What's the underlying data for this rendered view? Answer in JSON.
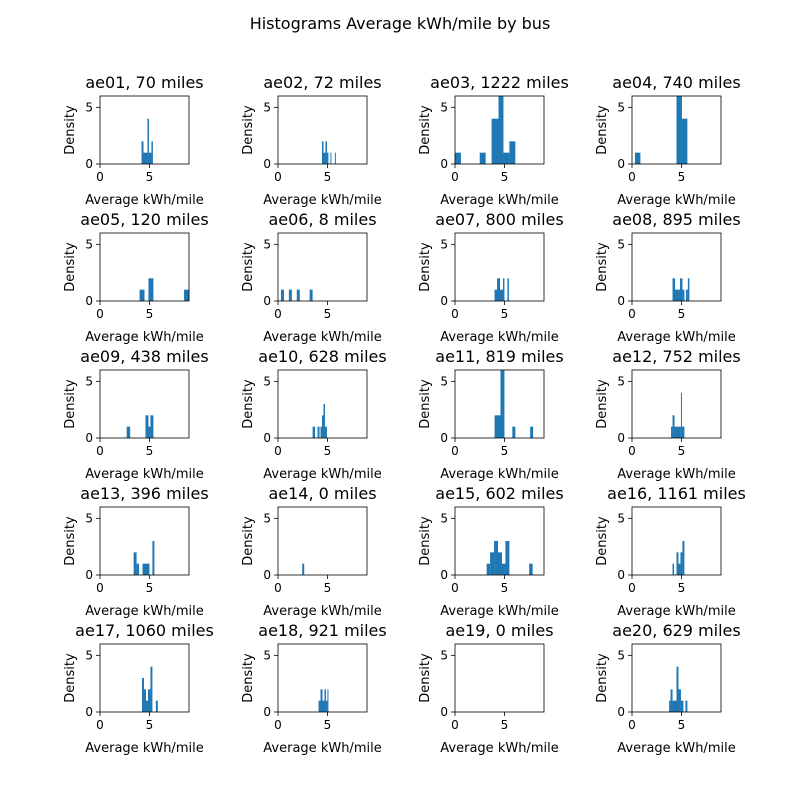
{
  "figure": {
    "suptitle": "Histograms Average kWh/mile by bus"
  },
  "colors": {
    "bar": "#1f77b4",
    "axis": "#000000",
    "background": "#ffffff"
  },
  "chart_data": [
    {
      "type": "bar",
      "title": "ae01, 70 miles",
      "xlabel": "Average kWh/mile",
      "ylabel": "Density",
      "xlim": [
        0,
        9
      ],
      "ylim": [
        0,
        6
      ],
      "xticks": [
        0,
        5
      ],
      "yticks": [
        0,
        5
      ],
      "grid": false,
      "bins": [
        {
          "x0": 4.2,
          "x1": 4.4,
          "h": 2
        },
        {
          "x0": 4.4,
          "x1": 4.8,
          "h": 1
        },
        {
          "x0": 4.8,
          "x1": 4.95,
          "h": 4
        },
        {
          "x0": 4.95,
          "x1": 5.2,
          "h": 1
        },
        {
          "x0": 5.2,
          "x1": 5.35,
          "h": 2
        }
      ]
    },
    {
      "type": "bar",
      "title": "ae02, 72 miles",
      "xlabel": "Average kWh/mile",
      "ylabel": "Density",
      "xlim": [
        0,
        9
      ],
      "ylim": [
        0,
        6
      ],
      "xticks": [
        0,
        5
      ],
      "yticks": [
        0,
        5
      ],
      "grid": false,
      "bins": [
        {
          "x0": 4.45,
          "x1": 4.6,
          "h": 2
        },
        {
          "x0": 4.6,
          "x1": 4.8,
          "h": 1
        },
        {
          "x0": 4.8,
          "x1": 4.95,
          "h": 2
        },
        {
          "x0": 4.95,
          "x1": 5.1,
          "h": 1
        },
        {
          "x0": 5.3,
          "x1": 5.4,
          "h": 1
        },
        {
          "x0": 5.75,
          "x1": 5.85,
          "h": 1
        }
      ]
    },
    {
      "type": "bar",
      "title": "ae03, 1222 miles",
      "xlabel": "Average kWh/mile",
      "ylabel": "Density",
      "xlim": [
        0,
        9
      ],
      "ylim": [
        0,
        6
      ],
      "xticks": [
        0,
        5
      ],
      "yticks": [
        0,
        5
      ],
      "grid": false,
      "bins": [
        {
          "x0": 0,
          "x1": 0.6,
          "h": 1
        },
        {
          "x0": 2.5,
          "x1": 3.1,
          "h": 1
        },
        {
          "x0": 3.7,
          "x1": 4.4,
          "h": 4
        },
        {
          "x0": 4.4,
          "x1": 4.9,
          "h": 6
        },
        {
          "x0": 4.9,
          "x1": 5.5,
          "h": 1
        },
        {
          "x0": 5.5,
          "x1": 6.1,
          "h": 2
        }
      ]
    },
    {
      "type": "bar",
      "title": "ae04, 740 miles",
      "xlabel": "Average kWh/mile",
      "ylabel": "Density",
      "xlim": [
        0,
        9
      ],
      "ylim": [
        0,
        6
      ],
      "xticks": [
        0,
        5
      ],
      "yticks": [
        0,
        5
      ],
      "grid": false,
      "bins": [
        {
          "x0": 0.3,
          "x1": 0.85,
          "h": 1
        },
        {
          "x0": 4.5,
          "x1": 5.05,
          "h": 6
        },
        {
          "x0": 5.05,
          "x1": 5.6,
          "h": 4
        }
      ]
    },
    {
      "type": "bar",
      "title": "ae05, 120 miles",
      "xlabel": "Average kWh/mile",
      "ylabel": "Density",
      "xlim": [
        0,
        9
      ],
      "ylim": [
        0,
        6
      ],
      "xticks": [
        0,
        5
      ],
      "yticks": [
        0,
        5
      ],
      "grid": false,
      "bins": [
        {
          "x0": 4.0,
          "x1": 4.5,
          "h": 1
        },
        {
          "x0": 4.9,
          "x1": 5.4,
          "h": 2
        },
        {
          "x0": 8.5,
          "x1": 9.0,
          "h": 1
        }
      ]
    },
    {
      "type": "bar",
      "title": "ae06, 8 miles",
      "xlabel": "Average kWh/mile",
      "ylabel": "Density",
      "xlim": [
        0,
        9
      ],
      "ylim": [
        0,
        6
      ],
      "xticks": [
        0,
        5
      ],
      "yticks": [
        0,
        5
      ],
      "grid": false,
      "bins": [
        {
          "x0": 0.3,
          "x1": 0.6,
          "h": 1
        },
        {
          "x0": 1.1,
          "x1": 1.4,
          "h": 1
        },
        {
          "x0": 1.9,
          "x1": 2.2,
          "h": 1
        },
        {
          "x0": 3.2,
          "x1": 3.5,
          "h": 1
        }
      ]
    },
    {
      "type": "bar",
      "title": "ae07, 800 miles",
      "xlabel": "Average kWh/mile",
      "ylabel": "Density",
      "xlim": [
        0,
        9
      ],
      "ylim": [
        0,
        6
      ],
      "xticks": [
        0,
        5
      ],
      "yticks": [
        0,
        5
      ],
      "grid": false,
      "bins": [
        {
          "x0": 4.0,
          "x1": 4.25,
          "h": 1
        },
        {
          "x0": 4.25,
          "x1": 4.55,
          "h": 2
        },
        {
          "x0": 4.55,
          "x1": 4.85,
          "h": 1
        },
        {
          "x0": 4.85,
          "x1": 5.0,
          "h": 2
        },
        {
          "x0": 5.3,
          "x1": 5.45,
          "h": 2
        }
      ]
    },
    {
      "type": "bar",
      "title": "ae08, 895 miles",
      "xlabel": "Average kWh/mile",
      "ylabel": "Density",
      "xlim": [
        0,
        9
      ],
      "ylim": [
        0,
        6
      ],
      "xticks": [
        0,
        5
      ],
      "yticks": [
        0,
        5
      ],
      "grid": false,
      "bins": [
        {
          "x0": 4.1,
          "x1": 4.35,
          "h": 2
        },
        {
          "x0": 4.35,
          "x1": 4.85,
          "h": 1
        },
        {
          "x0": 4.85,
          "x1": 5.1,
          "h": 2
        },
        {
          "x0": 5.1,
          "x1": 5.3,
          "h": 1
        },
        {
          "x0": 5.45,
          "x1": 5.65,
          "h": 1
        },
        {
          "x0": 5.65,
          "x1": 5.8,
          "h": 2
        }
      ]
    },
    {
      "type": "bar",
      "title": "ae09, 438 miles",
      "xlabel": "Average kWh/mile",
      "ylabel": "Density",
      "xlim": [
        0,
        9
      ],
      "ylim": [
        0,
        6
      ],
      "xticks": [
        0,
        5
      ],
      "yticks": [
        0,
        5
      ],
      "grid": false,
      "bins": [
        {
          "x0": 2.7,
          "x1": 3.05,
          "h": 1
        },
        {
          "x0": 4.6,
          "x1": 4.9,
          "h": 2
        },
        {
          "x0": 4.9,
          "x1": 5.1,
          "h": 1
        },
        {
          "x0": 5.1,
          "x1": 5.4,
          "h": 2
        }
      ]
    },
    {
      "type": "bar",
      "title": "ae10, 628 miles",
      "xlabel": "Average kWh/mile",
      "ylabel": "Density",
      "xlim": [
        0,
        9
      ],
      "ylim": [
        0,
        6
      ],
      "xticks": [
        0,
        5
      ],
      "yticks": [
        0,
        5
      ],
      "grid": false,
      "bins": [
        {
          "x0": 3.5,
          "x1": 3.75,
          "h": 1
        },
        {
          "x0": 4.0,
          "x1": 4.2,
          "h": 1
        },
        {
          "x0": 4.3,
          "x1": 4.45,
          "h": 1
        },
        {
          "x0": 4.45,
          "x1": 4.6,
          "h": 2
        },
        {
          "x0": 4.6,
          "x1": 4.75,
          "h": 3
        },
        {
          "x0": 4.75,
          "x1": 4.95,
          "h": 1
        }
      ]
    },
    {
      "type": "bar",
      "title": "ae11, 819 miles",
      "xlabel": "Average kWh/mile",
      "ylabel": "Density",
      "xlim": [
        0,
        9
      ],
      "ylim": [
        0,
        6
      ],
      "xticks": [
        0,
        5
      ],
      "yticks": [
        0,
        5
      ],
      "grid": false,
      "bins": [
        {
          "x0": 4.0,
          "x1": 4.6,
          "h": 2
        },
        {
          "x0": 4.6,
          "x1": 5.0,
          "h": 6
        },
        {
          "x0": 5.8,
          "x1": 6.1,
          "h": 1
        },
        {
          "x0": 7.6,
          "x1": 7.9,
          "h": 1
        }
      ]
    },
    {
      "type": "bar",
      "title": "ae12, 752 miles",
      "xlabel": "Average kWh/mile",
      "ylabel": "Density",
      "xlim": [
        0,
        9
      ],
      "ylim": [
        0,
        6
      ],
      "xticks": [
        0,
        5
      ],
      "yticks": [
        0,
        5
      ],
      "grid": false,
      "bins": [
        {
          "x0": 3.95,
          "x1": 4.1,
          "h": 1
        },
        {
          "x0": 4.1,
          "x1": 4.3,
          "h": 2
        },
        {
          "x0": 4.3,
          "x1": 4.95,
          "h": 1
        },
        {
          "x0": 4.95,
          "x1": 5.05,
          "h": 4
        },
        {
          "x0": 5.05,
          "x1": 5.3,
          "h": 1
        }
      ]
    },
    {
      "type": "bar",
      "title": "ae13, 396 miles",
      "xlabel": "Average kWh/mile",
      "ylabel": "Density",
      "xlim": [
        0,
        9
      ],
      "ylim": [
        0,
        6
      ],
      "xticks": [
        0,
        5
      ],
      "yticks": [
        0,
        5
      ],
      "grid": false,
      "bins": [
        {
          "x0": 3.4,
          "x1": 3.7,
          "h": 2
        },
        {
          "x0": 3.7,
          "x1": 3.95,
          "h": 1
        },
        {
          "x0": 4.3,
          "x1": 5.0,
          "h": 1
        },
        {
          "x0": 5.3,
          "x1": 5.5,
          "h": 3
        }
      ]
    },
    {
      "type": "bar",
      "title": "ae14, 0 miles",
      "xlabel": "Average kWh/mile",
      "ylabel": "Density",
      "xlim": [
        0,
        9
      ],
      "ylim": [
        0,
        6
      ],
      "xticks": [
        0,
        5
      ],
      "yticks": [
        0,
        5
      ],
      "grid": false,
      "bins": [
        {
          "x0": 2.45,
          "x1": 2.65,
          "h": 1
        }
      ]
    },
    {
      "type": "bar",
      "title": "ae15, 602 miles",
      "xlabel": "Average kWh/mile",
      "ylabel": "Density",
      "xlim": [
        0,
        9
      ],
      "ylim": [
        0,
        6
      ],
      "xticks": [
        0,
        5
      ],
      "yticks": [
        0,
        5
      ],
      "grid": false,
      "bins": [
        {
          "x0": 3.2,
          "x1": 3.55,
          "h": 1
        },
        {
          "x0": 3.55,
          "x1": 3.95,
          "h": 2
        },
        {
          "x0": 3.95,
          "x1": 4.35,
          "h": 3
        },
        {
          "x0": 4.35,
          "x1": 4.75,
          "h": 2
        },
        {
          "x0": 4.75,
          "x1": 5.1,
          "h": 1
        },
        {
          "x0": 5.1,
          "x1": 5.5,
          "h": 3
        },
        {
          "x0": 7.5,
          "x1": 7.85,
          "h": 1
        }
      ]
    },
    {
      "type": "bar",
      "title": "ae16, 1161 miles",
      "xlabel": "Average kWh/mile",
      "ylabel": "Density",
      "xlim": [
        0,
        9
      ],
      "ylim": [
        0,
        6
      ],
      "xticks": [
        0,
        5
      ],
      "yticks": [
        0,
        5
      ],
      "grid": false,
      "bins": [
        {
          "x0": 4.1,
          "x1": 4.25,
          "h": 1
        },
        {
          "x0": 4.5,
          "x1": 4.7,
          "h": 2
        },
        {
          "x0": 4.7,
          "x1": 4.9,
          "h": 1
        },
        {
          "x0": 4.9,
          "x1": 5.1,
          "h": 2
        },
        {
          "x0": 5.1,
          "x1": 5.3,
          "h": 3
        }
      ]
    },
    {
      "type": "bar",
      "title": "ae17, 1060 miles",
      "xlabel": "Average kWh/mile",
      "ylabel": "Density",
      "xlim": [
        0,
        9
      ],
      "ylim": [
        0,
        6
      ],
      "xticks": [
        0,
        5
      ],
      "yticks": [
        0,
        5
      ],
      "grid": false,
      "bins": [
        {
          "x0": 4.25,
          "x1": 4.45,
          "h": 3
        },
        {
          "x0": 4.45,
          "x1": 4.65,
          "h": 2
        },
        {
          "x0": 4.65,
          "x1": 4.85,
          "h": 1
        },
        {
          "x0": 4.85,
          "x1": 5.1,
          "h": 2
        },
        {
          "x0": 5.1,
          "x1": 5.3,
          "h": 4
        },
        {
          "x0": 5.65,
          "x1": 5.85,
          "h": 1
        }
      ]
    },
    {
      "type": "bar",
      "title": "ae18, 921 miles",
      "xlabel": "Average kWh/mile",
      "ylabel": "Density",
      "xlim": [
        0,
        9
      ],
      "ylim": [
        0,
        6
      ],
      "xticks": [
        0,
        5
      ],
      "yticks": [
        0,
        5
      ],
      "grid": false,
      "bins": [
        {
          "x0": 4.1,
          "x1": 4.3,
          "h": 1
        },
        {
          "x0": 4.3,
          "x1": 4.5,
          "h": 2
        },
        {
          "x0": 4.5,
          "x1": 4.7,
          "h": 1
        },
        {
          "x0": 4.7,
          "x1": 4.85,
          "h": 2
        },
        {
          "x0": 4.85,
          "x1": 5.0,
          "h": 1
        },
        {
          "x0": 5.0,
          "x1": 5.1,
          "h": 2
        }
      ]
    },
    {
      "type": "bar",
      "title": "ae19, 0 miles",
      "xlabel": "Average kWh/mile",
      "ylabel": "Density",
      "xlim": [
        0,
        9
      ],
      "ylim": [
        0,
        6
      ],
      "xticks": [
        0,
        5
      ],
      "yticks": [
        0,
        5
      ],
      "grid": false,
      "bins": []
    },
    {
      "type": "bar",
      "title": "ae20, 629 miles",
      "xlabel": "Average kWh/mile",
      "ylabel": "Density",
      "xlim": [
        0,
        9
      ],
      "ylim": [
        0,
        6
      ],
      "xticks": [
        0,
        5
      ],
      "yticks": [
        0,
        5
      ],
      "grid": false,
      "bins": [
        {
          "x0": 3.75,
          "x1": 3.9,
          "h": 1
        },
        {
          "x0": 3.9,
          "x1": 4.1,
          "h": 2
        },
        {
          "x0": 4.1,
          "x1": 4.5,
          "h": 1
        },
        {
          "x0": 4.5,
          "x1": 4.7,
          "h": 4
        },
        {
          "x0": 4.7,
          "x1": 4.95,
          "h": 2
        },
        {
          "x0": 4.95,
          "x1": 5.2,
          "h": 1
        },
        {
          "x0": 5.4,
          "x1": 5.6,
          "h": 1
        }
      ]
    }
  ]
}
